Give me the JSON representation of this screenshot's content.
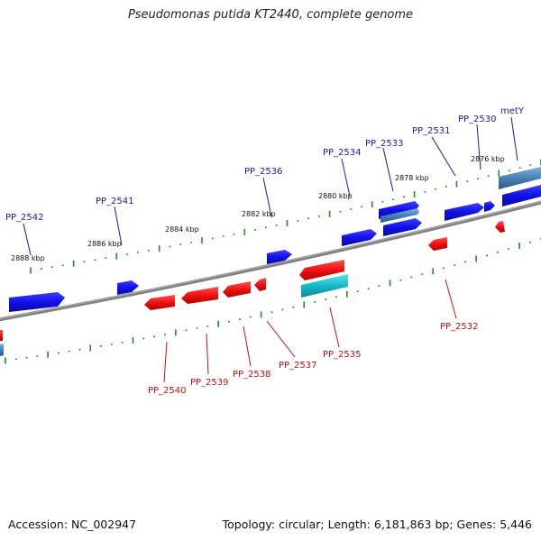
{
  "header": {
    "title": "Pseudomonas putida KT2440, complete genome"
  },
  "footer": {
    "accession": "Accession: NC_002947",
    "stats": "Topology: circular; Length: 6,181,863 bp; Genes: 5,446"
  },
  "colors": {
    "forward_gene": "#1010e8",
    "reverse_gene": "#ee1111",
    "rna_gene": "#18b8c8",
    "forward_label": "#1a1aa8",
    "reverse_label": "#cc1010",
    "backbone": "#808080",
    "tick": "#228b22"
  },
  "kbp_marks": [
    "2888 kbp",
    "2886 kbp",
    "2884 kbp",
    "2882 kbp",
    "2880 kbp",
    "2878 kbp",
    "2876 kbp"
  ],
  "forward_labels": [
    "PP_2542",
    "PP_2541",
    "PP_2536",
    "PP_2534",
    "PP_2533",
    "PP_2531",
    "PP_2530",
    "metY"
  ],
  "reverse_labels": [
    "PP_2540",
    "PP_2539",
    "PP_2538",
    "PP_2537",
    "PP_2535",
    "PP_2532"
  ]
}
